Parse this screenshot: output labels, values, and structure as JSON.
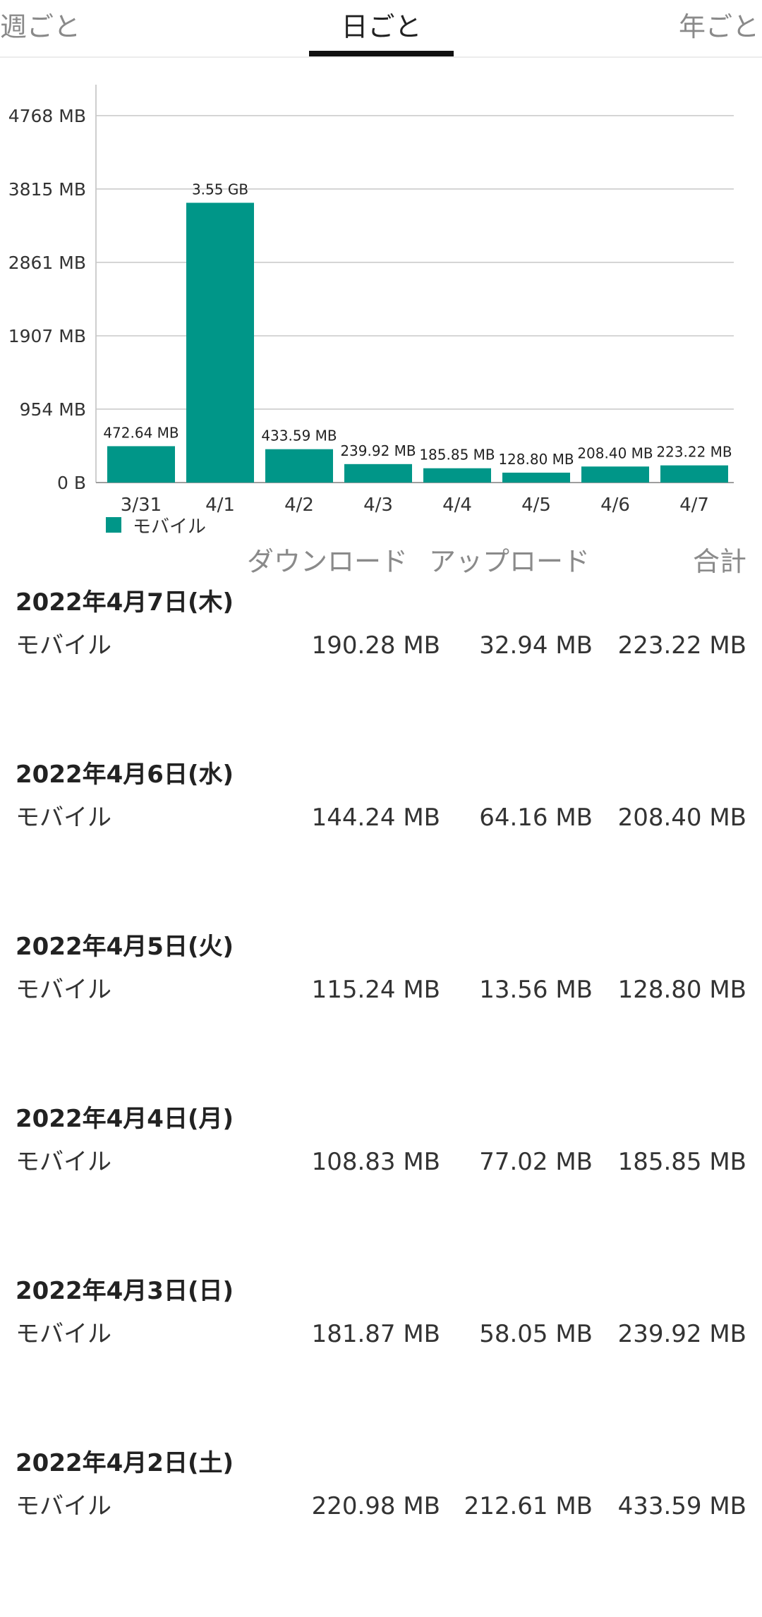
{
  "tabs": [
    {
      "label": "週ごと",
      "active": false
    },
    {
      "label": "日ごと",
      "active": true
    },
    {
      "label": "年ごと",
      "active": false
    }
  ],
  "colors": {
    "bar": "#009688",
    "grid": "#c8c8c8",
    "accent": "#111111"
  },
  "chart_data": {
    "type": "bar",
    "categories": [
      "3/31",
      "4/1",
      "4/2",
      "4/3",
      "4/4",
      "4/5",
      "4/6",
      "4/7"
    ],
    "series": [
      {
        "name": "モバイル",
        "values": [
          472.64,
          3635.2,
          433.59,
          239.92,
          185.85,
          128.8,
          208.4,
          223.22
        ],
        "labels": [
          "472.64 MB",
          "3.55 GB",
          "433.59 MB",
          "239.92 MB",
          "185.85 MB",
          "128.80 MB",
          "208.40 MB",
          "223.22 MB"
        ]
      }
    ],
    "yticks": [
      0,
      954,
      1907,
      2861,
      3815,
      4768
    ],
    "ytick_labels": [
      "0 B",
      "954 MB",
      "1907 MB",
      "2861 MB",
      "3815 MB",
      "4768 MB"
    ],
    "ylim": [
      0,
      5170
    ],
    "xlabel": "",
    "ylabel": "",
    "grid": true,
    "legend": "bottom-left"
  },
  "table": {
    "headers": {
      "download": "ダウンロード",
      "upload": "アップロード",
      "total": "合計"
    },
    "groups": [
      {
        "date": "2022年4月7日(木)",
        "type": "モバイル",
        "download": "190.28 MB",
        "upload": "32.94 MB",
        "total": "223.22 MB"
      },
      {
        "date": "2022年4月6日(水)",
        "type": "モバイル",
        "download": "144.24 MB",
        "upload": "64.16 MB",
        "total": "208.40 MB"
      },
      {
        "date": "2022年4月5日(火)",
        "type": "モバイル",
        "download": "115.24 MB",
        "upload": "13.56 MB",
        "total": "128.80 MB"
      },
      {
        "date": "2022年4月4日(月)",
        "type": "モバイル",
        "download": "108.83 MB",
        "upload": "77.02 MB",
        "total": "185.85 MB"
      },
      {
        "date": "2022年4月3日(日)",
        "type": "モバイル",
        "download": "181.87 MB",
        "upload": "58.05 MB",
        "total": "239.92 MB"
      },
      {
        "date": "2022年4月2日(土)",
        "type": "モバイル",
        "download": "220.98 MB",
        "upload": "212.61 MB",
        "total": "433.59 MB"
      }
    ]
  }
}
